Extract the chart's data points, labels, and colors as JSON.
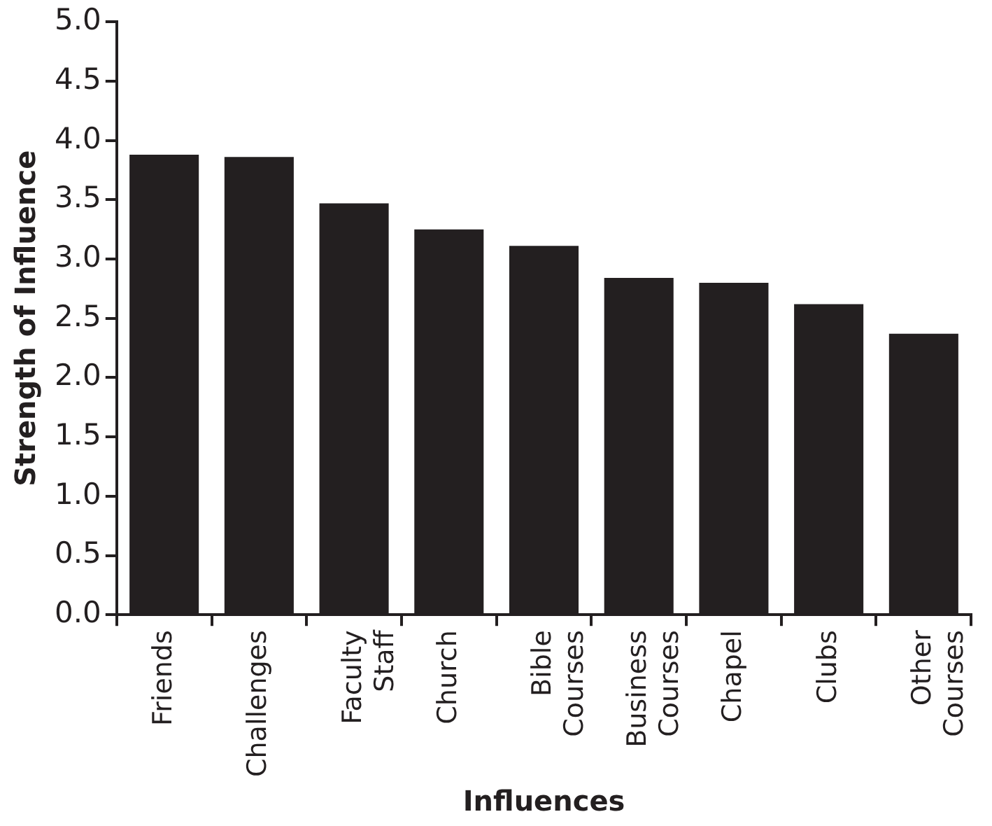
{
  "chart_data": {
    "type": "bar",
    "xlabel": "Influences",
    "ylabel": "Strength of Influence",
    "categories": [
      "Friends",
      "Challenges",
      "Faculty\nStaff",
      "Church",
      "Bible\nCourses",
      "Business\nCourses",
      "Chapel",
      "Clubs",
      "Other\nCourses"
    ],
    "values": [
      3.88,
      3.86,
      3.47,
      3.25,
      3.11,
      2.84,
      2.8,
      2.62,
      2.37
    ],
    "color": "#231f20",
    "ylim": [
      0,
      5
    ],
    "yticks": [
      {
        "value": 0,
        "label": "0.0"
      },
      {
        "value": 0.5,
        "label": "0.5"
      },
      {
        "value": 1,
        "label": "1.0"
      },
      {
        "value": 1.5,
        "label": "1.5"
      },
      {
        "value": 2,
        "label": "2.0"
      },
      {
        "value": 2.5,
        "label": "2.5"
      },
      {
        "value": 3,
        "label": "3.0"
      },
      {
        "value": 3.5,
        "label": "3.5"
      },
      {
        "value": 4,
        "label": "4.0"
      },
      {
        "value": 4.5,
        "label": "4.5"
      },
      {
        "value": 5,
        "label": "5.0"
      }
    ],
    "grid": false,
    "legend": false
  }
}
